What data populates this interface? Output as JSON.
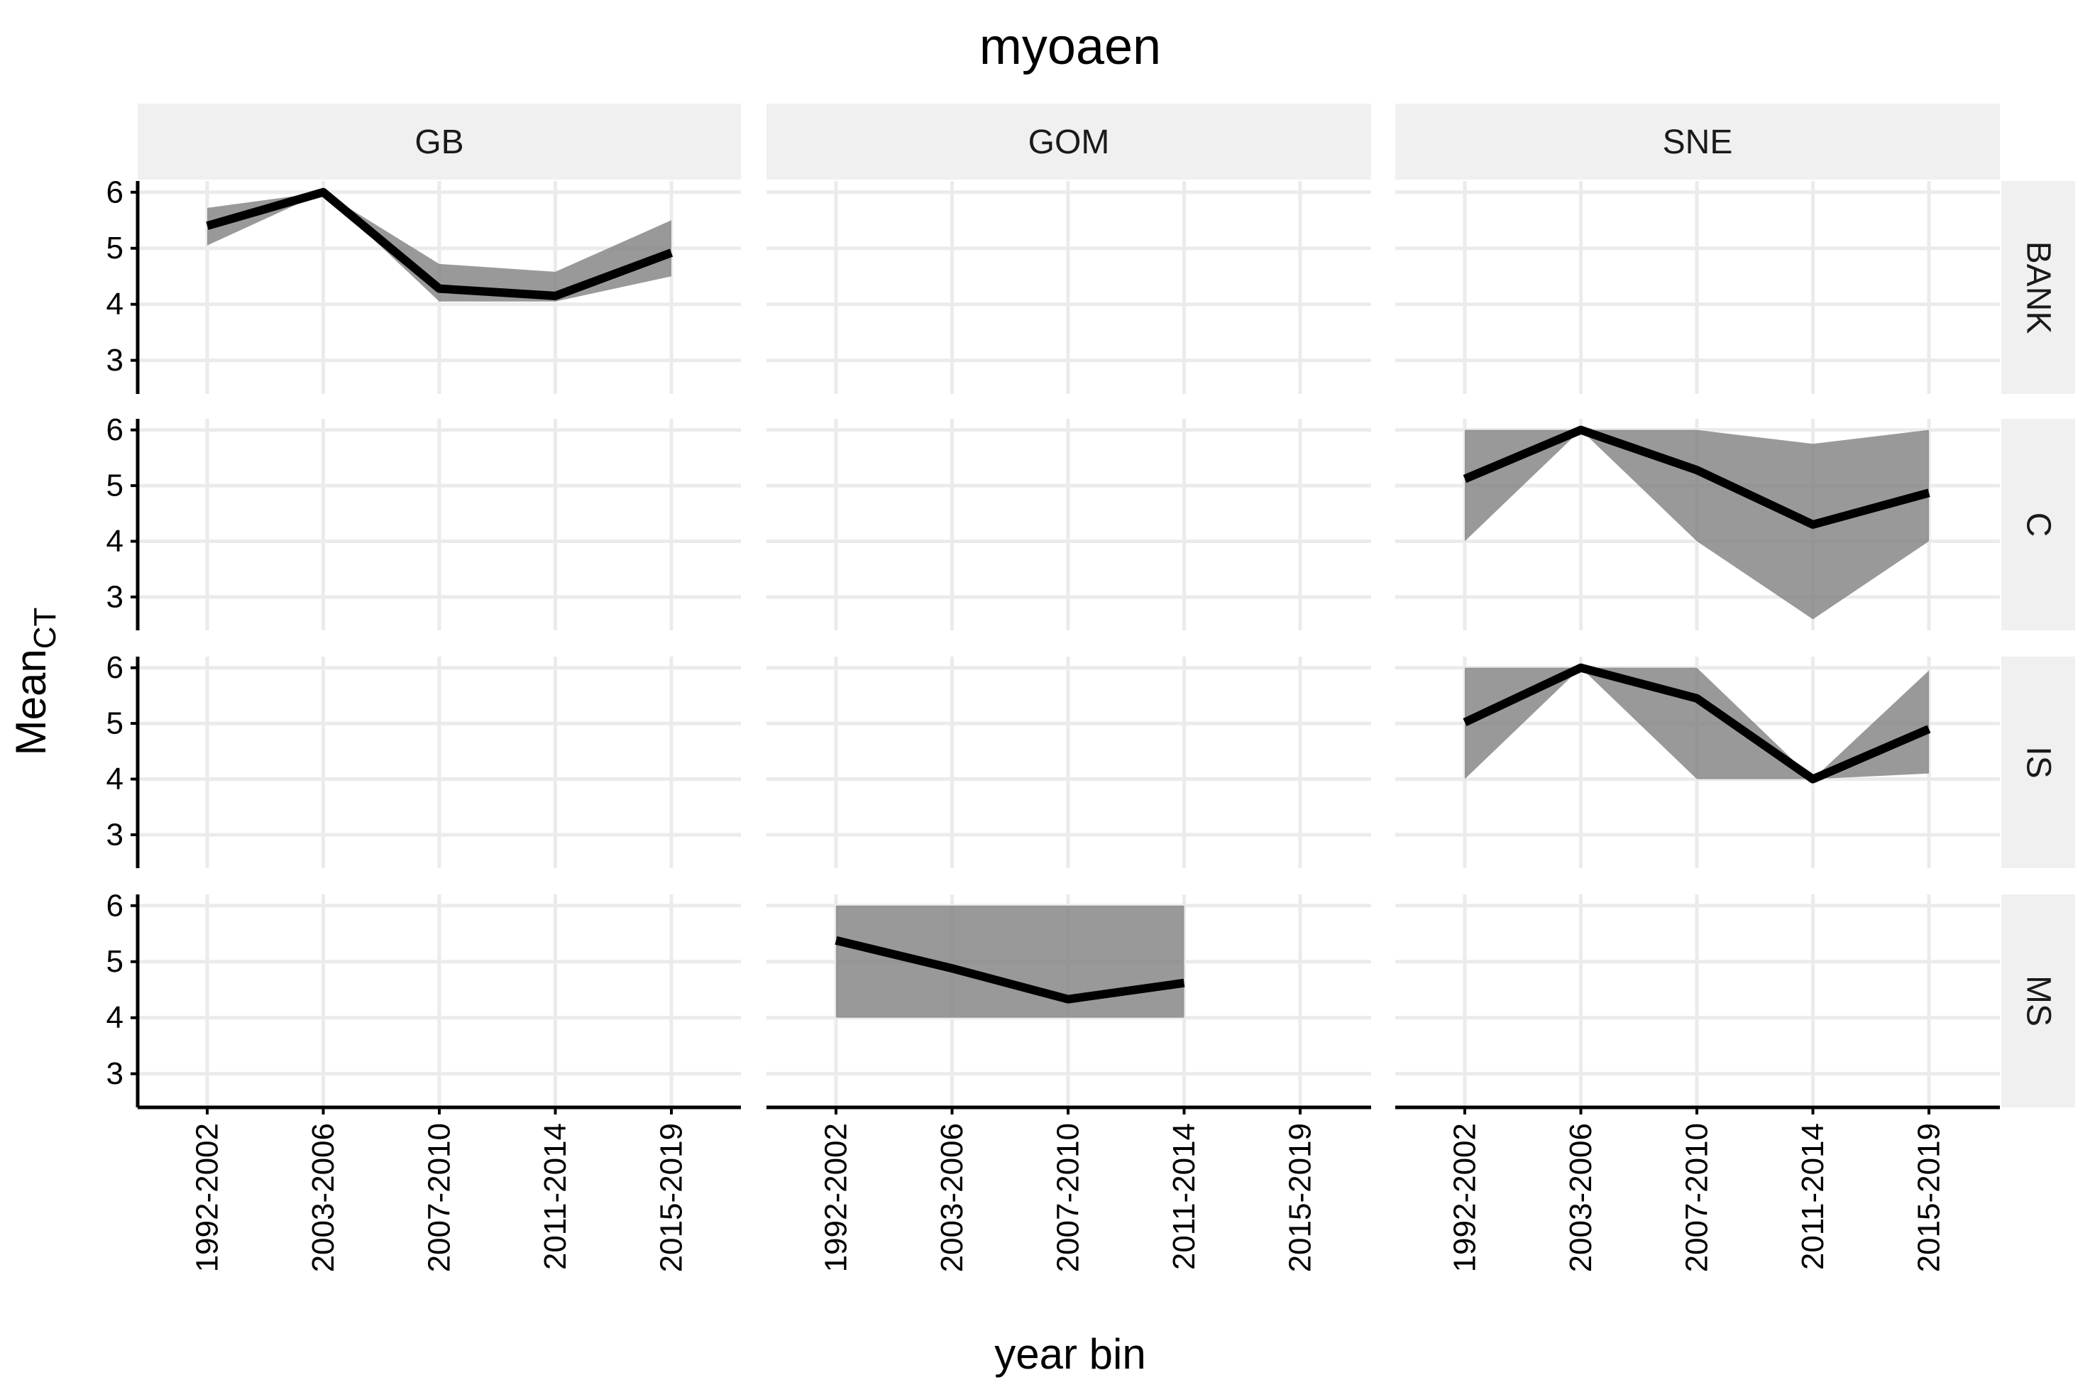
{
  "chart_data": {
    "type": "line",
    "title": "myoaen",
    "xlabel": "year bin",
    "ylabel_main": "Mean",
    "ylabel_sub": "CT",
    "categories": [
      "1992-2002",
      "2003-2006",
      "2007-2010",
      "2011-2014",
      "2015-2019"
    ],
    "yticks": [
      3,
      4,
      5,
      6
    ],
    "ylim": [
      2.4,
      6.2
    ],
    "grid": true,
    "col_facets": [
      "GB",
      "GOM",
      "SNE"
    ],
    "row_facets": [
      "BANK",
      "C",
      "IS",
      "MS"
    ],
    "panels": [
      {
        "row": "BANK",
        "col": "GB",
        "mean": [
          5.4,
          6.0,
          4.28,
          4.15,
          4.92
        ],
        "lower": [
          5.05,
          6.0,
          4.05,
          4.05,
          4.5
        ],
        "upper": [
          5.72,
          6.0,
          4.72,
          4.58,
          5.5
        ]
      },
      {
        "row": "C",
        "col": "SNE",
        "mean": [
          5.12,
          6.0,
          5.28,
          4.3,
          4.87
        ],
        "lower": [
          4.0,
          6.0,
          4.0,
          2.6,
          4.0
        ],
        "upper": [
          6.0,
          6.0,
          6.0,
          5.75,
          6.0
        ]
      },
      {
        "row": "IS",
        "col": "SNE",
        "mean": [
          5.02,
          6.0,
          5.45,
          4.0,
          4.9
        ],
        "lower": [
          4.0,
          6.0,
          4.0,
          4.0,
          4.1
        ],
        "upper": [
          6.0,
          6.0,
          6.0,
          4.0,
          5.95
        ]
      },
      {
        "row": "MS",
        "col": "GOM",
        "mean": [
          5.38,
          4.88,
          4.33,
          4.62,
          null
        ],
        "lower": [
          4.0,
          4.0,
          4.0,
          4.0,
          null
        ],
        "upper": [
          6.0,
          6.0,
          6.0,
          6.0,
          null
        ]
      }
    ]
  }
}
